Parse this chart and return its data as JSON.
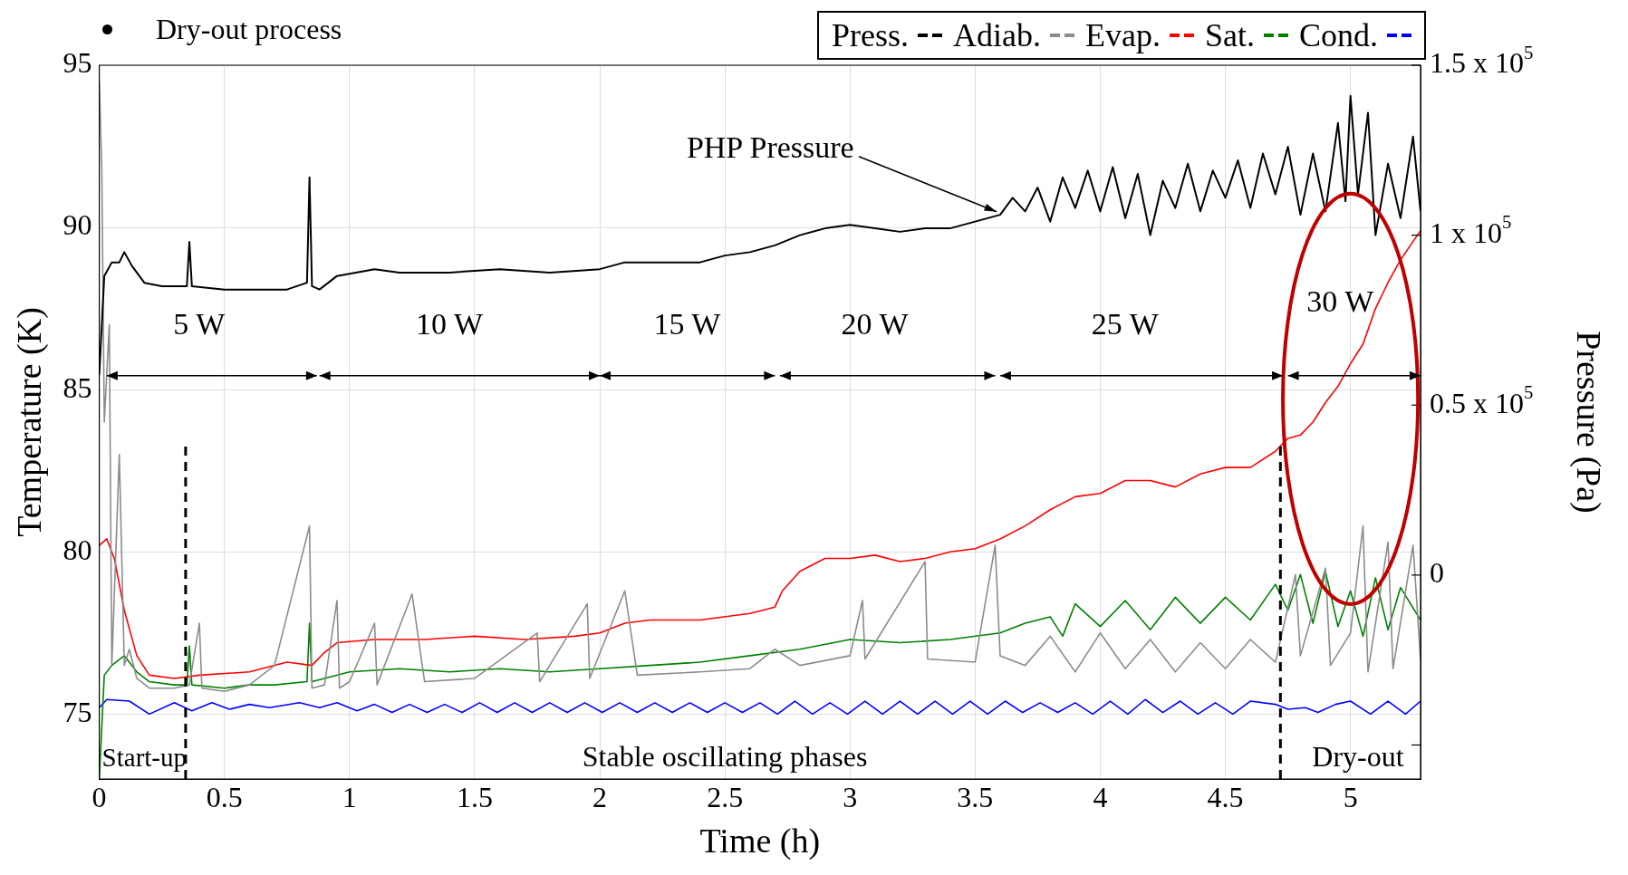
{
  "chart_data": {
    "type": "line",
    "xlabel": "Time (h)",
    "ylabel": "Temperature (K)",
    "y2label": "Pressure (Pa)",
    "xlim": [
      0,
      5.28
    ],
    "xticks": [
      0,
      0.5,
      1,
      1.5,
      2,
      2.5,
      3,
      3.5,
      4,
      4.5,
      5
    ],
    "ylim": [
      73,
      95
    ],
    "yticks": [
      75,
      80,
      85,
      90,
      95
    ],
    "y2lim": [
      -60000,
      150000
    ],
    "y2ticks": [
      {
        "value": -50000,
        "label": null
      },
      0,
      {
        "value": 50000,
        "label": "0.5 x 10$^{5}$"
      },
      {
        "value": 100000,
        "label": "1 x 10$^{5}$"
      },
      {
        "value": 150000,
        "label": "1.5 x 10$^{5}$"
      }
    ],
    "grid": true,
    "legend": "top right",
    "line_style": "solid",
    "marker": "none",
    "series": [
      {
        "name": "Press.",
        "color": "#000000",
        "axis": "y2",
        "x": [
          0,
          0.02,
          0.05,
          0.08,
          0.1,
          0.13,
          0.18,
          0.25,
          0.35,
          0.36,
          0.37,
          0.5,
          0.6,
          0.75,
          0.83,
          0.84,
          0.85,
          0.88,
          0.95,
          1.1,
          1.2,
          1.4,
          1.6,
          1.8,
          2.0,
          2.1,
          2.2,
          2.3,
          2.4,
          2.5,
          2.6,
          2.7,
          2.8,
          2.9,
          3.0,
          3.1,
          3.2,
          3.3,
          3.4,
          3.5,
          3.6,
          3.65,
          3.7,
          3.75,
          3.8,
          3.85,
          3.9,
          3.95,
          4.0,
          4.05,
          4.1,
          4.15,
          4.2,
          4.25,
          4.3,
          4.35,
          4.4,
          4.45,
          4.5,
          4.55,
          4.6,
          4.65,
          4.7,
          4.75,
          4.8,
          4.85,
          4.9,
          4.95,
          4.98,
          5.0,
          5.03,
          5.07,
          5.1,
          5.15,
          5.2,
          5.25,
          5.28
        ],
        "values": [
          59000,
          88000,
          92000,
          92000,
          95000,
          91000,
          86000,
          85000,
          85000,
          98000,
          85000,
          84000,
          84000,
          84000,
          86000,
          117000,
          85000,
          84000,
          88000,
          90000,
          89000,
          89000,
          90000,
          89000,
          90000,
          92000,
          92000,
          92000,
          92000,
          94000,
          95000,
          97000,
          100000,
          102000,
          103000,
          102000,
          101000,
          102000,
          102000,
          104000,
          106000,
          111000,
          107000,
          114000,
          104000,
          117000,
          108000,
          119000,
          107000,
          120000,
          105000,
          118000,
          100000,
          116000,
          108000,
          121000,
          107000,
          119000,
          111000,
          122000,
          108000,
          124000,
          112000,
          126000,
          106000,
          124000,
          107000,
          133000,
          110000,
          141000,
          112000,
          136000,
          100000,
          121000,
          105000,
          129000,
          107000
        ]
      },
      {
        "name": "Adiab.",
        "color": "#8c8c8c",
        "x": [
          0,
          0.01,
          0.02,
          0.04,
          0.05,
          0.08,
          0.1,
          0.12,
          0.15,
          0.2,
          0.3,
          0.36,
          0.4,
          0.41,
          0.5,
          0.6,
          0.7,
          0.84,
          0.85,
          0.9,
          0.95,
          0.96,
          1.0,
          1.1,
          1.11,
          1.25,
          1.3,
          1.5,
          1.75,
          1.76,
          1.95,
          1.96,
          2.1,
          2.15,
          2.4,
          2.6,
          2.7,
          2.8,
          3.0,
          3.05,
          3.06,
          3.3,
          3.31,
          3.5,
          3.58,
          3.6,
          3.7,
          3.8,
          3.9,
          4.0,
          4.1,
          4.2,
          4.3,
          4.4,
          4.5,
          4.6,
          4.7,
          4.78,
          4.8,
          4.9,
          4.92,
          5.0,
          5.05,
          5.07,
          5.15,
          5.17,
          5.25,
          5.28
        ],
        "values": [
          94.5,
          91.8,
          84,
          87,
          76.5,
          83,
          76.5,
          77,
          76.1,
          75.8,
          75.8,
          75.9,
          77.8,
          75.8,
          75.7,
          75.9,
          76.5,
          80.8,
          75.8,
          75.9,
          78.5,
          75.8,
          76.0,
          77.8,
          75.9,
          78.7,
          76.0,
          76.1,
          77.5,
          76.0,
          78.4,
          76.1,
          78.8,
          76.2,
          76.3,
          76.4,
          77.0,
          76.5,
          76.8,
          78.5,
          76.7,
          79.7,
          76.7,
          76.6,
          80.2,
          76.8,
          76.5,
          77.4,
          76.3,
          77.5,
          76.4,
          77.3,
          76.3,
          77.2,
          76.4,
          77.3,
          76.6,
          79.3,
          76.8,
          79.5,
          76.5,
          77.5,
          80.8,
          76.3,
          80.3,
          76.4,
          80.2,
          76.7
        ]
      },
      {
        "name": "Evap.",
        "color": "#ff0000",
        "x": [
          0,
          0.03,
          0.06,
          0.1,
          0.15,
          0.2,
          0.3,
          0.4,
          0.6,
          0.75,
          0.85,
          0.9,
          0.95,
          1.1,
          1.3,
          1.5,
          1.7,
          1.9,
          2.0,
          2.1,
          2.2,
          2.4,
          2.6,
          2.7,
          2.73,
          2.8,
          2.9,
          3.0,
          3.1,
          3.2,
          3.3,
          3.4,
          3.5,
          3.6,
          3.7,
          3.8,
          3.9,
          4.0,
          4.1,
          4.2,
          4.3,
          4.4,
          4.5,
          4.6,
          4.7,
          4.75,
          4.8,
          4.85,
          4.9,
          4.95,
          5.0,
          5.05,
          5.1,
          5.15,
          5.2,
          5.28
        ],
        "values": [
          80.2,
          80.4,
          79.8,
          78.2,
          76.8,
          76.2,
          76.1,
          76.2,
          76.3,
          76.6,
          76.5,
          76.9,
          77.2,
          77.3,
          77.3,
          77.4,
          77.3,
          77.4,
          77.5,
          77.8,
          77.9,
          77.9,
          78.1,
          78.3,
          78.8,
          79.4,
          79.8,
          79.8,
          79.9,
          79.7,
          79.8,
          80.0,
          80.1,
          80.4,
          80.8,
          81.3,
          81.7,
          81.8,
          82.2,
          82.2,
          82.0,
          82.4,
          82.6,
          82.6,
          83.1,
          83.5,
          83.6,
          84.0,
          84.6,
          85.1,
          85.8,
          86.4,
          87.5,
          88.3,
          89.0,
          89.9
        ]
      },
      {
        "name": "Sat.",
        "color": "#008000",
        "x": [
          0,
          0.02,
          0.05,
          0.1,
          0.15,
          0.2,
          0.3,
          0.35,
          0.36,
          0.37,
          0.5,
          0.6,
          0.7,
          0.83,
          0.84,
          0.85,
          0.9,
          1.0,
          1.2,
          1.4,
          1.6,
          1.8,
          2.0,
          2.2,
          2.4,
          2.6,
          2.8,
          3.0,
          3.2,
          3.4,
          3.6,
          3.7,
          3.8,
          3.85,
          3.9,
          4.0,
          4.1,
          4.2,
          4.3,
          4.4,
          4.5,
          4.6,
          4.7,
          4.75,
          4.8,
          4.85,
          4.9,
          4.95,
          5.0,
          5.05,
          5.1,
          5.15,
          5.2,
          5.28
        ],
        "values": [
          73,
          76.2,
          76.5,
          76.8,
          76.3,
          76.0,
          75.9,
          75.9,
          77.1,
          75.9,
          75.8,
          75.9,
          75.9,
          76.0,
          77.8,
          76.0,
          76.1,
          76.3,
          76.4,
          76.3,
          76.4,
          76.3,
          76.4,
          76.5,
          76.6,
          76.8,
          77.0,
          77.3,
          77.2,
          77.3,
          77.5,
          77.8,
          78.0,
          77.4,
          78.4,
          77.7,
          78.5,
          77.6,
          78.6,
          77.8,
          78.6,
          77.9,
          79.0,
          78.2,
          79.3,
          77.8,
          79.4,
          77.7,
          78.8,
          77.4,
          79.2,
          77.6,
          78.9,
          77.9
        ]
      },
      {
        "name": "Cond.",
        "color": "#0000ff",
        "x": [
          0,
          0.03,
          0.12,
          0.2,
          0.3,
          0.37,
          0.45,
          0.52,
          0.6,
          0.68,
          0.8,
          0.88,
          0.95,
          1.03,
          1.1,
          1.17,
          1.24,
          1.31,
          1.38,
          1.45,
          1.52,
          1.59,
          1.66,
          1.73,
          1.8,
          1.87,
          1.94,
          2.01,
          2.08,
          2.15,
          2.22,
          2.29,
          2.36,
          2.43,
          2.5,
          2.57,
          2.64,
          2.71,
          2.78,
          2.85,
          2.92,
          2.99,
          3.06,
          3.13,
          3.2,
          3.27,
          3.34,
          3.41,
          3.48,
          3.55,
          3.62,
          3.69,
          3.76,
          3.83,
          3.9,
          3.97,
          4.04,
          4.11,
          4.18,
          4.25,
          4.32,
          4.39,
          4.46,
          4.53,
          4.6,
          4.7,
          4.75,
          4.82,
          4.87,
          4.94,
          5.0,
          5.08,
          5.15,
          5.22,
          5.28
        ],
        "values": [
          75.2,
          75.45,
          75.4,
          75.0,
          75.35,
          75.1,
          75.35,
          75.15,
          75.3,
          75.2,
          75.35,
          75.2,
          75.35,
          75.1,
          75.3,
          75.05,
          75.3,
          75.05,
          75.3,
          75.05,
          75.35,
          75.05,
          75.35,
          75.05,
          75.35,
          75.05,
          75.35,
          75.05,
          75.35,
          75.05,
          75.35,
          75.05,
          75.35,
          75.05,
          75.35,
          75.05,
          75.35,
          75.0,
          75.4,
          75.0,
          75.35,
          75.0,
          75.4,
          75.0,
          75.4,
          75.0,
          75.4,
          75.0,
          75.4,
          75.0,
          75.4,
          75.05,
          75.35,
          75.05,
          75.35,
          75.0,
          75.4,
          75.0,
          75.45,
          75.05,
          75.4,
          75.0,
          75.35,
          75.0,
          75.4,
          75.3,
          75.15,
          75.2,
          75.05,
          75.3,
          75.4,
          75.0,
          75.4,
          75.0,
          75.4
        ]
      }
    ],
    "ref_lines": [
      {
        "axis": "x",
        "value": 0.345,
        "color": "#000000",
        "line_style": "dashed"
      },
      {
        "axis": "x",
        "value": 4.72,
        "color": "#000000",
        "line_style": "dashed"
      }
    ],
    "annotations": [
      "Dry-out process",
      "5 W",
      "10 W",
      "15 W",
      "20 W",
      "25 W",
      "30 W",
      "Start-up",
      "Stable oscillating phases",
      "Dry-out",
      {
        "text": "PHP Pressure",
        "x": 3.6,
        "y": 90.4
      }
    ]
  }
}
